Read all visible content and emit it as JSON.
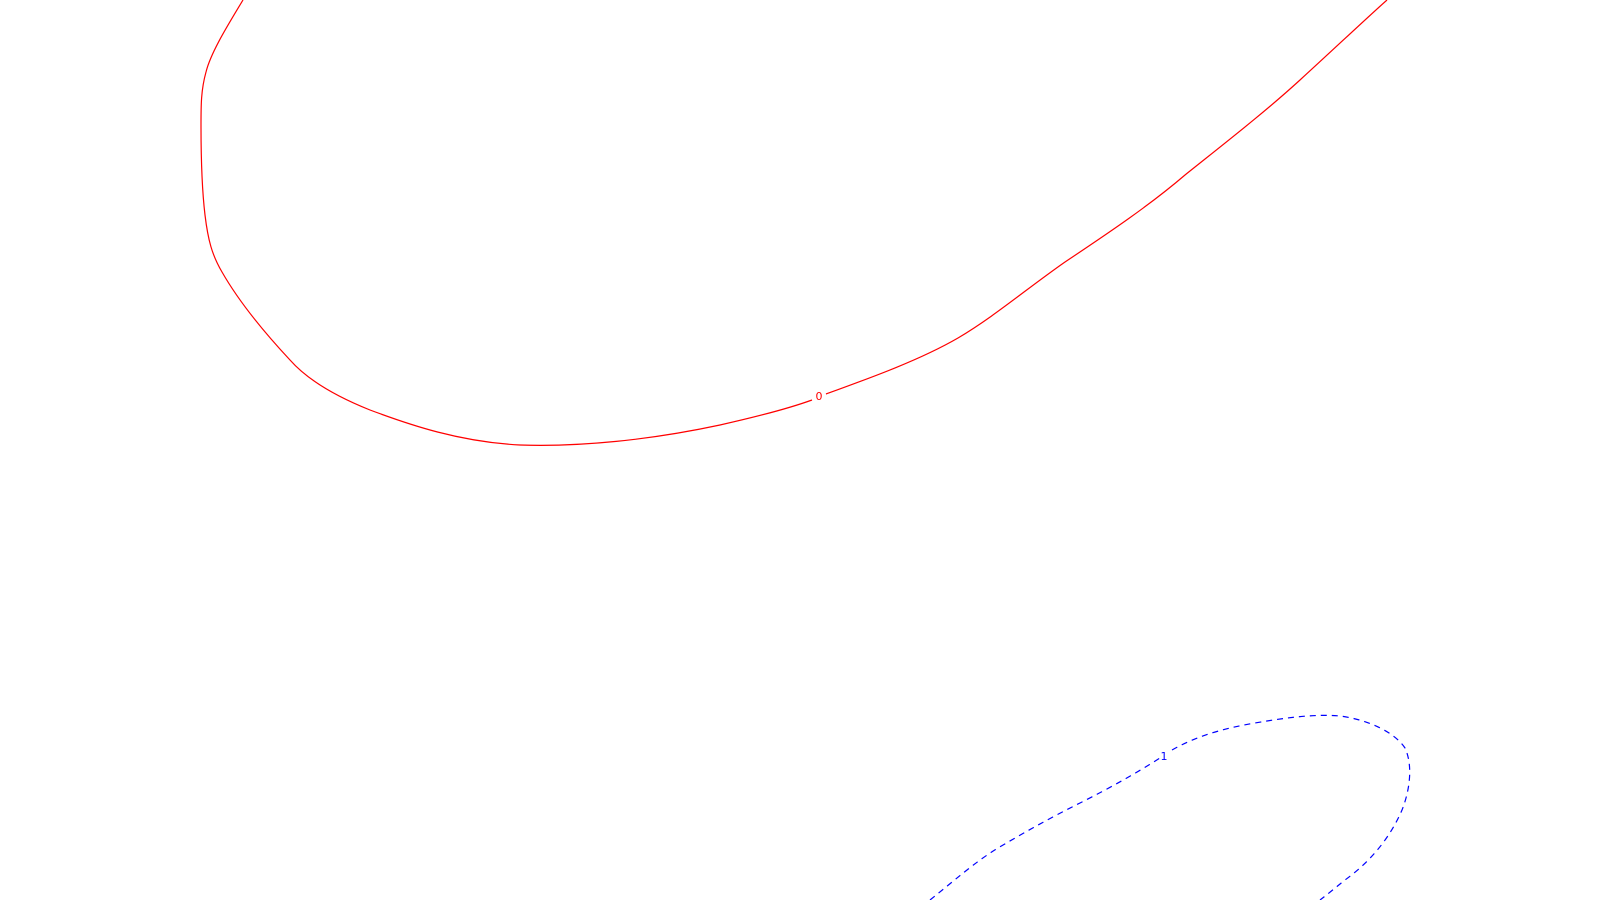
{
  "background": "#ffffff",
  "contours": [
    {
      "label": "0",
      "color": "#ff0000",
      "line_style": "solid"
    },
    {
      "label": "1",
      "color": "#0000ff",
      "line_style": "dashed"
    }
  ]
}
